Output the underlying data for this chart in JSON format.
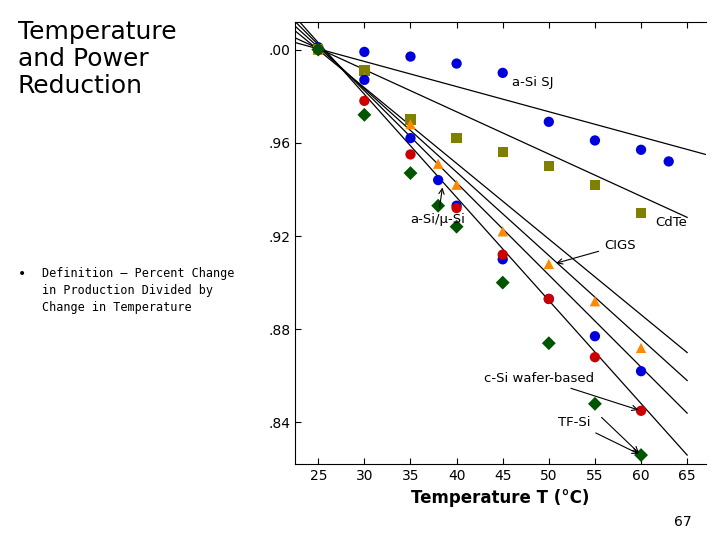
{
  "title": "Temperature\nand Power\nReduction",
  "bullet_text": "Definition – Percent Change\nin Production Divided by\nChange in Temperature",
  "xlabel": "Temperature T (°C)",
  "ytick_labels": [
    ".84",
    ".88",
    ".92",
    ".96",
    ".00"
  ],
  "yticks": [
    0.84,
    0.88,
    0.92,
    0.96,
    1.0
  ],
  "xticks": [
    25,
    30,
    35,
    40,
    45,
    50,
    55,
    60,
    65
  ],
  "xlim": [
    22.5,
    67
  ],
  "ylim": [
    0.822,
    1.012
  ],
  "page_number": "67",
  "series": [
    {
      "label": "a-Si SJ",
      "color": "#0000dd",
      "marker": "o",
      "ms": 55,
      "data_x": [
        25,
        30,
        35,
        40,
        45,
        50,
        55,
        60,
        63
      ],
      "data_y": [
        1.001,
        0.999,
        0.997,
        0.994,
        0.99,
        0.969,
        0.961,
        0.957,
        0.952
      ],
      "line_x": [
        22.5,
        67
      ],
      "line_y": [
        1.003,
        0.955
      ]
    },
    {
      "label": "CdTe",
      "color": "#808000",
      "marker": "s",
      "ms": 55,
      "data_x": [
        25,
        30,
        35,
        40,
        45,
        50,
        55,
        60
      ],
      "data_y": [
        1.0,
        0.991,
        0.97,
        0.962,
        0.956,
        0.95,
        0.942,
        0.93
      ],
      "line_x": [
        22.5,
        65
      ],
      "line_y": [
        1.005,
        0.928
      ]
    },
    {
      "label": "CIGS",
      "color": "#ff8800",
      "marker": "^",
      "ms": 55,
      "data_x": [
        25,
        30,
        35,
        38,
        40,
        45,
        50,
        55,
        60
      ],
      "data_y": [
        1.0,
        0.988,
        0.968,
        0.951,
        0.942,
        0.922,
        0.908,
        0.892,
        0.872
      ],
      "line_x": [
        22.5,
        65
      ],
      "line_y": [
        1.008,
        0.87
      ]
    },
    {
      "label": "a-Si/μ-Si",
      "color": "#0000dd",
      "marker": "o",
      "ms": 55,
      "data_x": [
        25,
        30,
        35,
        38,
        40,
        45,
        50,
        55,
        60
      ],
      "data_y": [
        1.0,
        0.987,
        0.962,
        0.944,
        0.933,
        0.91,
        0.893,
        0.877,
        0.862
      ],
      "line_x": [
        22.5,
        65
      ],
      "line_y": [
        1.01,
        0.858
      ]
    },
    {
      "label": "c-Si wafer-based",
      "color": "#cc0000",
      "marker": "o",
      "ms": 55,
      "data_x": [
        25,
        30,
        35,
        40,
        45,
        50,
        55,
        60
      ],
      "data_y": [
        1.0,
        0.978,
        0.955,
        0.932,
        0.912,
        0.893,
        0.868,
        0.845
      ],
      "line_x": [
        22.5,
        65
      ],
      "line_y": [
        1.012,
        0.844
      ]
    },
    {
      "label": "TF-Si",
      "color": "#005500",
      "marker": "D",
      "ms": 50,
      "data_x": [
        25,
        30,
        35,
        38,
        40,
        45,
        50,
        55,
        60
      ],
      "data_y": [
        1.0,
        0.972,
        0.947,
        0.933,
        0.924,
        0.9,
        0.874,
        0.848,
        0.826
      ],
      "line_x": [
        22.5,
        65
      ],
      "line_y": [
        1.014,
        0.826
      ]
    }
  ]
}
